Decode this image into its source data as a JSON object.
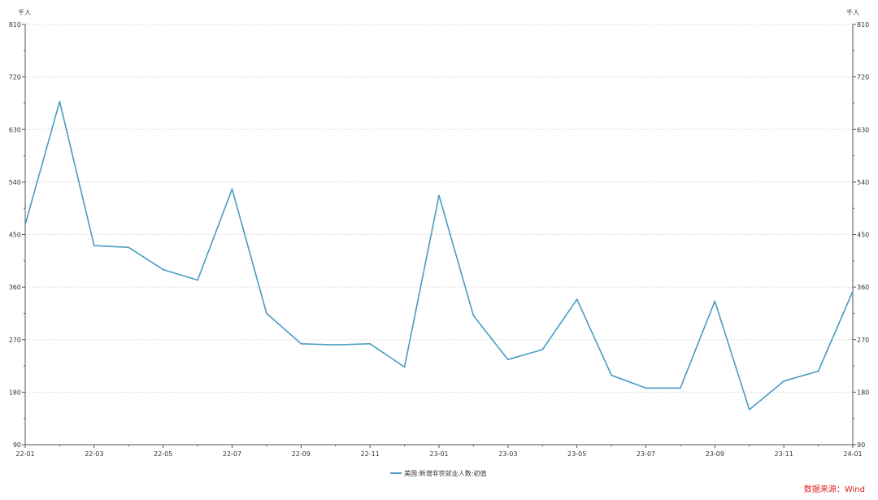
{
  "chart_data": {
    "type": "line",
    "unit_left": "千人",
    "unit_right": "千人",
    "ylim": [
      90,
      810
    ],
    "yticks": [
      90,
      180,
      270,
      360,
      450,
      540,
      630,
      720,
      810
    ],
    "x_tick_labels": [
      "22-01",
      "22-03",
      "22-05",
      "22-07",
      "22-09",
      "22-11",
      "23-01",
      "23-03",
      "23-05",
      "23-07",
      "23-09",
      "23-11",
      "24-01"
    ],
    "x": [
      "22-01",
      "22-02",
      "22-03",
      "22-04",
      "22-05",
      "22-06",
      "22-07",
      "22-08",
      "22-09",
      "22-10",
      "22-11",
      "22-12",
      "23-01",
      "23-02",
      "23-03",
      "23-04",
      "23-05",
      "23-06",
      "23-07",
      "23-08",
      "23-09",
      "23-10",
      "23-11",
      "23-12",
      "24-01"
    ],
    "series": [
      {
        "name": "美国:新增非农就业人数:初值",
        "color": "#4a9bc4",
        "values": [
          467,
          678,
          431,
          428,
          390,
          372,
          528,
          315,
          263,
          261,
          263,
          223,
          517,
          311,
          236,
          253,
          339,
          209,
          187,
          187,
          336,
          150,
          199,
          216,
          353
        ]
      }
    ],
    "grid": "horizontal-dotted",
    "legend_position": "bottom-center"
  },
  "source_label": "数据来源：Wind"
}
